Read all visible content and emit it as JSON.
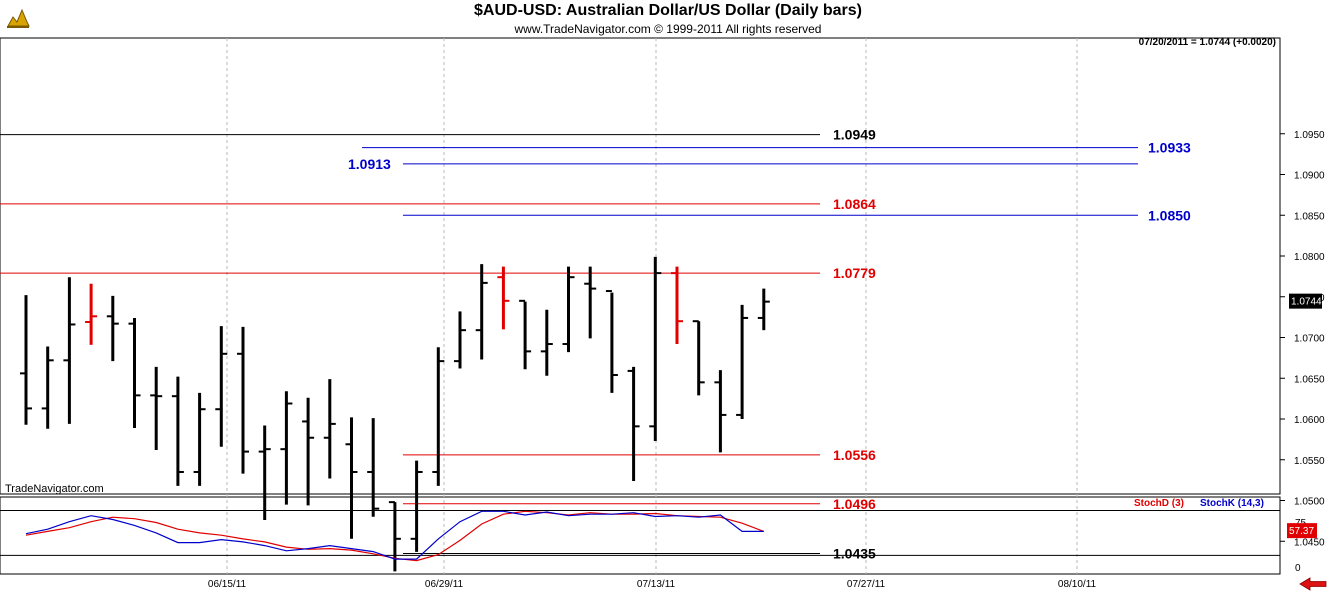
{
  "header": {
    "title": "$AUD-USD:  Australian Dollar/US Dollar  (Daily bars)",
    "subtitle": "www.TradeNavigator.com © 1999-2011 All rights reserved",
    "status": "07/20/2011 = 1.0744 (+0.0020)",
    "watermark": "TradeNavigator.com"
  },
  "colors": {
    "black": "#000000",
    "red": "#e00000",
    "blue": "#0000cc",
    "grid": "#b8b8b8"
  },
  "chart_data": [
    {
      "type": "ohlc",
      "title": "$AUD-USD:  Australian Dollar/US Dollar  (Daily bars)",
      "ylim": [
        1.041,
        1.099
      ],
      "y_ticks": [
        "1.0950",
        "1.0900",
        "1.0850",
        "1.0800",
        "1.0750",
        "1.0700",
        "1.0650",
        "1.0600",
        "1.0550",
        "1.0500",
        "1.0450"
      ],
      "x_ticks": [
        "06/15/11",
        "06/29/11",
        "07/13/11",
        "07/27/11",
        "08/10/11"
      ],
      "last_price_label": "1.0744",
      "bars": [
        {
          "o": 1.0656,
          "h": 1.0752,
          "l": 1.0593,
          "c": 1.0613,
          "color": "black"
        },
        {
          "o": 1.0613,
          "h": 1.0689,
          "l": 1.0588,
          "c": 1.0672,
          "color": "black"
        },
        {
          "o": 1.0672,
          "h": 1.0774,
          "l": 1.0594,
          "c": 1.0716,
          "color": "black"
        },
        {
          "o": 1.0719,
          "h": 1.0766,
          "l": 1.0691,
          "c": 1.0726,
          "color": "red"
        },
        {
          "o": 1.0726,
          "h": 1.0751,
          "l": 1.0671,
          "c": 1.0717,
          "color": "black"
        },
        {
          "o": 1.0717,
          "h": 1.0724,
          "l": 1.0589,
          "c": 1.0629,
          "color": "black"
        },
        {
          "o": 1.0629,
          "h": 1.0664,
          "l": 1.0562,
          "c": 1.0628,
          "color": "black"
        },
        {
          "o": 1.0628,
          "h": 1.0652,
          "l": 1.0518,
          "c": 1.0535,
          "color": "black"
        },
        {
          "o": 1.0535,
          "h": 1.0632,
          "l": 1.0518,
          "c": 1.0612,
          "color": "black"
        },
        {
          "o": 1.0612,
          "h": 1.0714,
          "l": 1.0566,
          "c": 1.068,
          "color": "black"
        },
        {
          "o": 1.068,
          "h": 1.0713,
          "l": 1.0533,
          "c": 1.056,
          "color": "black"
        },
        {
          "o": 1.056,
          "h": 1.0592,
          "l": 1.0476,
          "c": 1.0563,
          "color": "black"
        },
        {
          "o": 1.0563,
          "h": 1.0634,
          "l": 1.0495,
          "c": 1.0619,
          "color": "black"
        },
        {
          "o": 1.0597,
          "h": 1.0626,
          "l": 1.0494,
          "c": 1.0577,
          "color": "black"
        },
        {
          "o": 1.0577,
          "h": 1.0649,
          "l": 1.0527,
          "c": 1.0594,
          "color": "black"
        },
        {
          "o": 1.0569,
          "h": 1.0602,
          "l": 1.0453,
          "c": 1.0535,
          "color": "black"
        },
        {
          "o": 1.0535,
          "h": 1.0601,
          "l": 1.048,
          "c": 1.049,
          "color": "black"
        },
        {
          "o": 1.0498,
          "h": 1.0498,
          "l": 1.0413,
          "c": 1.0453,
          "color": "black"
        },
        {
          "o": 1.0453,
          "h": 1.0549,
          "l": 1.0437,
          "c": 1.0535,
          "color": "black"
        },
        {
          "o": 1.0535,
          "h": 1.0688,
          "l": 1.0518,
          "c": 1.0671,
          "color": "black"
        },
        {
          "o": 1.0671,
          "h": 1.0732,
          "l": 1.0662,
          "c": 1.0709,
          "color": "black"
        },
        {
          "o": 1.0709,
          "h": 1.079,
          "l": 1.0673,
          "c": 1.0767,
          "color": "black"
        },
        {
          "o": 1.0774,
          "h": 1.0787,
          "l": 1.071,
          "c": 1.0745,
          "color": "red"
        },
        {
          "o": 1.0745,
          "h": 1.0744,
          "l": 1.0661,
          "c": 1.0683,
          "color": "black"
        },
        {
          "o": 1.0683,
          "h": 1.0734,
          "l": 1.0653,
          "c": 1.0692,
          "color": "black"
        },
        {
          "o": 1.0692,
          "h": 1.0787,
          "l": 1.0682,
          "c": 1.0774,
          "color": "black"
        },
        {
          "o": 1.0766,
          "h": 1.0787,
          "l": 1.0699,
          "c": 1.076,
          "color": "black"
        },
        {
          "o": 1.0757,
          "h": 1.0755,
          "l": 1.0632,
          "c": 1.0654,
          "color": "black"
        },
        {
          "o": 1.0659,
          "h": 1.0664,
          "l": 1.0524,
          "c": 1.0591,
          "color": "black"
        },
        {
          "o": 1.0591,
          "h": 1.0799,
          "l": 1.0573,
          "c": 1.0779,
          "color": "black"
        },
        {
          "o": 1.0779,
          "h": 1.0787,
          "l": 1.0692,
          "c": 1.072,
          "color": "red"
        },
        {
          "o": 1.072,
          "h": 1.072,
          "l": 1.0629,
          "c": 1.0645,
          "color": "black"
        },
        {
          "o": 1.0645,
          "h": 1.066,
          "l": 1.0559,
          "c": 1.0605,
          "color": "black"
        },
        {
          "o": 1.0605,
          "h": 1.074,
          "l": 1.06,
          "c": 1.0724,
          "color": "black"
        },
        {
          "o": 1.0724,
          "h": 1.076,
          "l": 1.0709,
          "c": 1.0744,
          "color": "black"
        }
      ],
      "levels": [
        {
          "label": "1.0949",
          "value": 1.0949,
          "color": "black",
          "span": "from-left"
        },
        {
          "label": "1.0933",
          "value": 1.0933,
          "color": "blue",
          "span": "right"
        },
        {
          "label": "1.0913",
          "value": 1.0913,
          "color": "blue",
          "span": "right-label-left"
        },
        {
          "label": "1.0864",
          "value": 1.0864,
          "color": "red",
          "span": "from-left"
        },
        {
          "label": "1.0850",
          "value": 1.085,
          "color": "blue",
          "span": "right"
        },
        {
          "label": "1.0779",
          "value": 1.0779,
          "color": "red",
          "span": "from-left"
        },
        {
          "label": "1.0556",
          "value": 1.0556,
          "color": "red",
          "span": "mid"
        },
        {
          "label": "1.0496",
          "value": 1.0496,
          "color": "red",
          "span": "mid"
        },
        {
          "label": "1.0435",
          "value": 1.0435,
          "color": "black",
          "span": "mid"
        }
      ]
    },
    {
      "type": "line",
      "ylim": [
        0,
        100
      ],
      "y_ticks": [
        "75",
        "0"
      ],
      "last_value_label": "57.37",
      "series": [
        {
          "name": "StochD (3)",
          "color": "red",
          "values": [
            52,
            57,
            62,
            70,
            76,
            74,
            69,
            60,
            55,
            52,
            47,
            43,
            36,
            33,
            34,
            32,
            27,
            21,
            18,
            26,
            45,
            67,
            80,
            84,
            82,
            79,
            82,
            80,
            80,
            81,
            78,
            77,
            76,
            68,
            57
          ]
        },
        {
          "name": "StochK (14,3)",
          "color": "blue",
          "values": [
            54,
            60,
            70,
            78,
            73,
            65,
            55,
            42,
            42,
            46,
            43,
            38,
            31,
            34,
            38,
            34,
            30,
            20,
            20,
            47,
            70,
            84,
            84,
            79,
            83,
            78,
            80,
            80,
            82,
            77,
            78,
            76,
            79,
            57,
            57
          ]
        }
      ]
    }
  ]
}
